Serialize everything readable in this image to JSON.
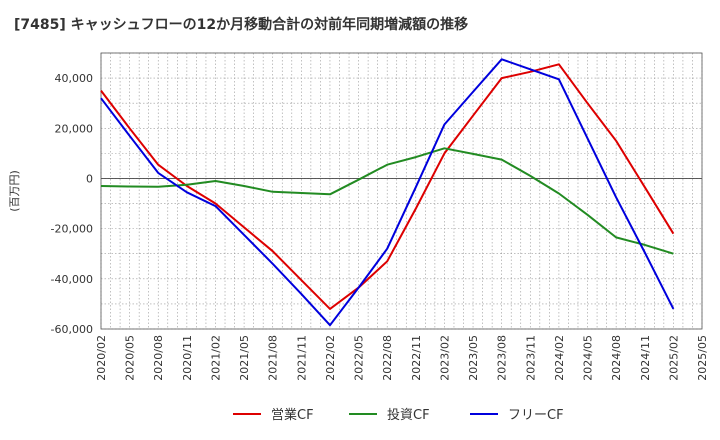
{
  "chart_data": {
    "type": "line",
    "title": "[7485]  キャッシュフローの12か月移動合計の対前年同期増減額の推移",
    "ylabel": "(百万円)",
    "xlabel": "",
    "x": [
      "2020/02",
      "2020/05",
      "2020/08",
      "2020/11",
      "2021/02",
      "2021/05",
      "2021/08",
      "2021/11",
      "2022/02",
      "2022/05",
      "2022/08",
      "2022/11",
      "2023/02",
      "2023/05",
      "2023/08",
      "2023/11",
      "2024/02",
      "2024/05",
      "2024/08",
      "2024/11",
      "2025/02",
      "2025/05"
    ],
    "yticks": [
      "-60,000",
      "-40,000",
      "-20,000",
      "0",
      "20,000",
      "40,000"
    ],
    "ylim": [
      -60000,
      50000
    ],
    "grid": true,
    "legend_position": "bottom",
    "series": [
      {
        "name": "営業CF",
        "color": "#dd0000",
        "values": [
          35000,
          20000,
          5500,
          -3000,
          -10000,
          -19500,
          -29000,
          -40500,
          -52000,
          -43500,
          -33000,
          -12000,
          10000,
          25000,
          40000,
          42500,
          45500,
          30000,
          15000,
          -3500,
          -22000,
          null
        ]
      },
      {
        "name": "投資CF",
        "color": "#228B22",
        "values": [
          -3000,
          -3200,
          -3300,
          -2500,
          -1000,
          -3000,
          -5300,
          -5800,
          -6300,
          -500,
          5500,
          8500,
          12000,
          9800,
          7500,
          1000,
          -6000,
          -14500,
          -23500,
          -26500,
          -30000,
          null
        ]
      },
      {
        "name": "フリーCF",
        "color": "#0000dd",
        "values": [
          32000,
          17000,
          2200,
          -5500,
          -11000,
          -22500,
          -34000,
          -46000,
          -58500,
          -43500,
          -28000,
          -3500,
          21500,
          34500,
          47500,
          43500,
          39500,
          16000,
          -7500,
          -29500,
          -52000,
          null
        ]
      }
    ]
  }
}
